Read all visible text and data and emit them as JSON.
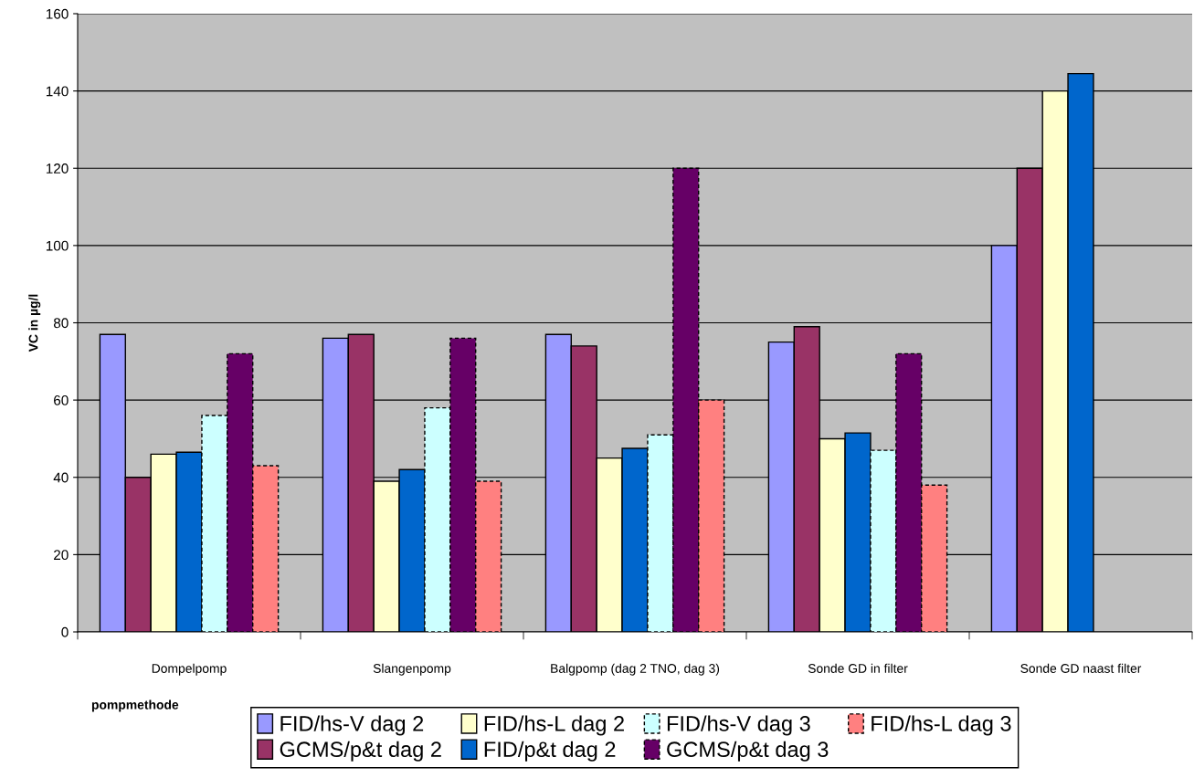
{
  "chart_data": {
    "type": "bar",
    "ylabel": "VC in µg/l",
    "xlabel": "pompmethode",
    "categories": [
      "Dompelpomp",
      "Slangenpomp",
      "Balgpomp (dag 2 TNO, dag 3)",
      "Sonde GD in filter",
      "Sonde GD naast filter"
    ],
    "series": [
      {
        "name": "FID/hs-V dag 2",
        "color": "#9999ff",
        "values": [
          77,
          76,
          77,
          75,
          100
        ]
      },
      {
        "name": "GCMS/p&t dag 2",
        "color": "#993366",
        "values": [
          40,
          77,
          74,
          79,
          120
        ]
      },
      {
        "name": "FID/hs-L dag 2",
        "color": "#ffffcc",
        "values": [
          46,
          39,
          45,
          50,
          140
        ]
      },
      {
        "name": "FID/p&t dag 2",
        "color": "#0066cc",
        "values": [
          46.5,
          42,
          47.5,
          51.5,
          144.5
        ]
      },
      {
        "name": "FID/hs-V dag 3",
        "color": "#ccffff",
        "line_style": "dashed",
        "values": [
          56,
          58,
          51,
          47,
          null
        ]
      },
      {
        "name": "GCMS/p&t dag 3",
        "color": "#660066",
        "line_style": "dashed",
        "values": [
          72,
          76,
          120,
          72,
          null
        ]
      },
      {
        "name": "FID/hs-L dag 3",
        "color": "#ff8080",
        "line_style": "dashed",
        "values": [
          43,
          39,
          60,
          38,
          null
        ]
      }
    ],
    "ylim": [
      0,
      160
    ],
    "yticks": [
      0,
      20,
      40,
      60,
      80,
      100,
      120,
      140,
      160
    ],
    "grid": "y",
    "legend": "bottom"
  }
}
